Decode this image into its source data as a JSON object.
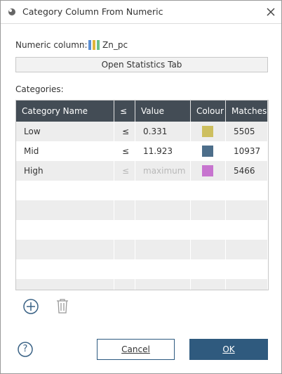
{
  "dialog": {
    "title": "Category Column From Numeric",
    "numeric_column_label": "Numeric column:",
    "numeric_column": "Zn_pc",
    "statistics_button": "Open Statistics Tab",
    "categories_label": "Categories:",
    "table": {
      "columns": [
        "Category Name",
        "≤",
        "Value",
        "Colour",
        "Matches"
      ],
      "rows": [
        {
          "name": "Low",
          "operator": "≤",
          "value": 0.331,
          "colour": "#cdbf5f",
          "matches": 5505,
          "disabled": false
        },
        {
          "name": "Mid",
          "operator": "≤",
          "value": 11.923,
          "colour": "#4d6e8a",
          "matches": 10937,
          "disabled": false
        },
        {
          "name": "High",
          "operator": "≤",
          "value": "maximum",
          "colour": "#c774cf",
          "matches": 5466,
          "disabled": true
        }
      ]
    },
    "buttons": {
      "help": "?",
      "cancel": "Cancel",
      "ok": "OK"
    }
  }
}
